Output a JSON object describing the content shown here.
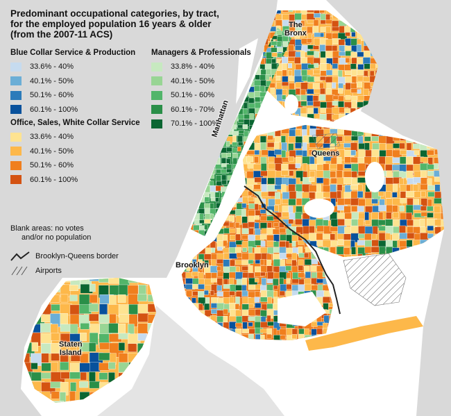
{
  "title_lines": [
    "Predominant occupational categories, by tract,",
    "for the employed population 16 years & older",
    "(from the 2007-11 ACS)"
  ],
  "legend": {
    "blue_collar": {
      "heading": "Blue Collar Service & Production",
      "items": [
        {
          "label": "33.6% - 40%",
          "color": "#c6dbef"
        },
        {
          "label": "40.1% - 50%",
          "color": "#6baed6"
        },
        {
          "label": "50.1% - 60%",
          "color": "#2b7bba"
        },
        {
          "label": "60.1% - 100%",
          "color": "#08519c"
        }
      ]
    },
    "office": {
      "heading": "Office, Sales, White Collar Service",
      "items": [
        {
          "label": "33.6% - 40%",
          "color": "#fee391"
        },
        {
          "label": "40.1% - 50%",
          "color": "#fdb84a"
        },
        {
          "label": "50.1% - 60%",
          "color": "#f07f1e"
        },
        {
          "label": "60.1% - 100%",
          "color": "#d45312"
        }
      ]
    },
    "managers": {
      "heading": "Managers & Professionals",
      "items": [
        {
          "label": "33.8% - 40%",
          "color": "#c7e9c0"
        },
        {
          "label": "40.1% - 50%",
          "color": "#98d594"
        },
        {
          "label": "50.1% - 60%",
          "color": "#52b56a"
        },
        {
          "label": "60.1% - 70%",
          "color": "#2a8f48"
        },
        {
          "label": "70.1% - 100%",
          "color": "#0b6632"
        }
      ]
    }
  },
  "notes": {
    "blank_line1": "Blank areas: no votes",
    "blank_line2": "and/or no population",
    "border_label": "Brooklyn-Queens border",
    "airports_label": "Airports"
  },
  "map_labels": {
    "bronx_line1": "The",
    "bronx_line2": "Bronx",
    "manhattan": "Manhattan",
    "queens": "Queens",
    "brooklyn": "Brooklyn",
    "staten_line1": "Staten",
    "staten_line2": "Island"
  },
  "colors": {
    "water": "#ffffff",
    "land_outside": "#d9d9d9",
    "border_line": "#222222"
  }
}
